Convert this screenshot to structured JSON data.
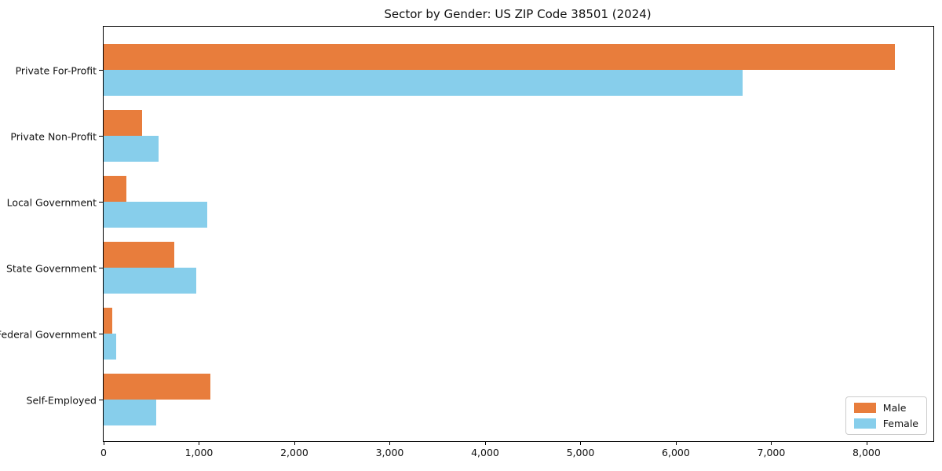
{
  "figure": {
    "background": "#ffffff",
    "spine_color": "#000000"
  },
  "chart_data": {
    "type": "bar",
    "orientation": "horizontal",
    "title": "Sector by Gender: US ZIP Code 38501 (2024)",
    "categories": [
      "Private For-Profit",
      "Private Non-Profit",
      "Local Government",
      "State Government",
      "Federal Government",
      "Self-Employed"
    ],
    "series": [
      {
        "name": "Male",
        "color": "#e87d3c",
        "values": [
          8300,
          400,
          240,
          740,
          90,
          1120
        ]
      },
      {
        "name": "Female",
        "color": "#87ceeb",
        "values": [
          6700,
          580,
          1090,
          970,
          130,
          550
        ]
      }
    ],
    "xlabel": "",
    "ylabel": "",
    "xlim": [
      0,
      8700
    ],
    "xticks": [
      0,
      1000,
      2000,
      3000,
      4000,
      5000,
      6000,
      7000,
      8000
    ],
    "xtick_labels": [
      "0",
      "1,000",
      "2,000",
      "3,000",
      "4,000",
      "5,000",
      "6,000",
      "7,000",
      "8,000"
    ],
    "grid": false,
    "legend_position": "lower right"
  },
  "legend": {
    "items": [
      {
        "label": "Male",
        "color": "#e87d3c"
      },
      {
        "label": "Female",
        "color": "#87ceeb"
      }
    ]
  }
}
